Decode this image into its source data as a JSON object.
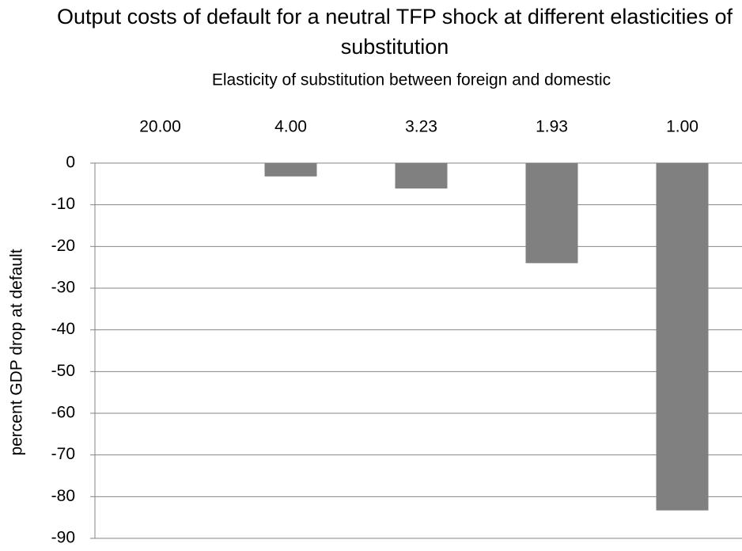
{
  "chart_data": {
    "type": "bar",
    "title": "Output costs of default for a neutral TFP shock at different elasticities of substitution",
    "x_label": "Elasticity of substitution between foreign and domestic",
    "y_label": "percent GDP drop at default",
    "categories": [
      "20.00",
      "4.00",
      "3.23",
      "1.93",
      "1.00"
    ],
    "values": [
      0,
      -3.2,
      -6.1,
      -24,
      -83.3
    ],
    "color": "#808080",
    "ylim": [
      -90,
      0
    ],
    "yticks": [
      0,
      -10,
      -20,
      -30,
      -40,
      -50,
      -60,
      -70,
      -80,
      -90
    ],
    "grid": true
  }
}
